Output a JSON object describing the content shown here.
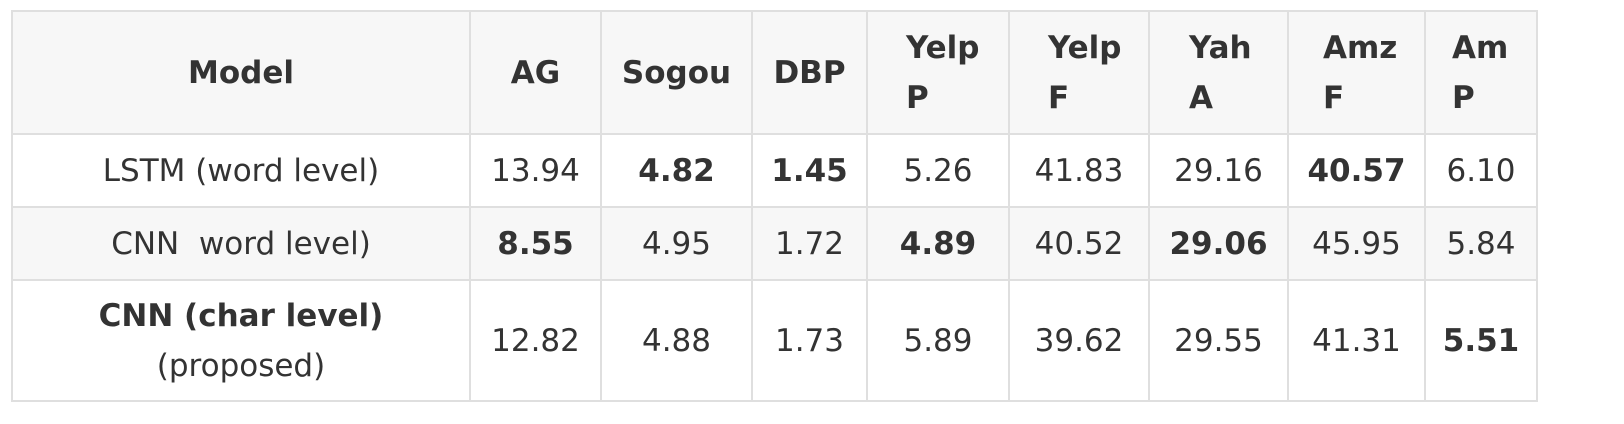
{
  "table": {
    "headers": [
      {
        "key": "model",
        "lines": [
          "Model"
        ]
      },
      {
        "key": "ag",
        "lines": [
          "AG"
        ]
      },
      {
        "key": "sogou",
        "lines": [
          "Sogou"
        ]
      },
      {
        "key": "dbp",
        "lines": [
          "DBP"
        ]
      },
      {
        "key": "yelpp",
        "lines": [
          "Yelp",
          "P"
        ]
      },
      {
        "key": "yelpf",
        "lines": [
          "Yelp",
          "F"
        ]
      },
      {
        "key": "yaha",
        "lines": [
          "Yah",
          "A"
        ]
      },
      {
        "key": "amzf",
        "lines": [
          "Amz",
          "F"
        ]
      },
      {
        "key": "amp",
        "lines": [
          "Am",
          "P"
        ]
      }
    ],
    "rows": [
      {
        "model_lines": [
          "LSTM (word level)"
        ],
        "model_bold": false,
        "values": [
          "13.94",
          "4.82",
          "1.45",
          "5.26",
          "41.83",
          "29.16",
          "40.57",
          "6.10"
        ],
        "bold": [
          false,
          true,
          true,
          false,
          false,
          false,
          true,
          false
        ]
      },
      {
        "model_lines": [
          "CNN  word level)"
        ],
        "model_bold": false,
        "values": [
          "8.55",
          "4.95",
          "1.72",
          "4.89",
          "40.52",
          "29.06",
          "45.95",
          "5.84"
        ],
        "bold": [
          true,
          false,
          false,
          true,
          false,
          true,
          false,
          false
        ]
      },
      {
        "model_lines": [
          "CNN (char level)",
          "(proposed)"
        ],
        "model_bold": true,
        "values": [
          "12.82",
          "4.88",
          "1.73",
          "5.89",
          "39.62",
          "29.55",
          "41.31",
          "5.51"
        ],
        "bold": [
          false,
          false,
          false,
          false,
          false,
          false,
          false,
          true
        ]
      }
    ]
  }
}
